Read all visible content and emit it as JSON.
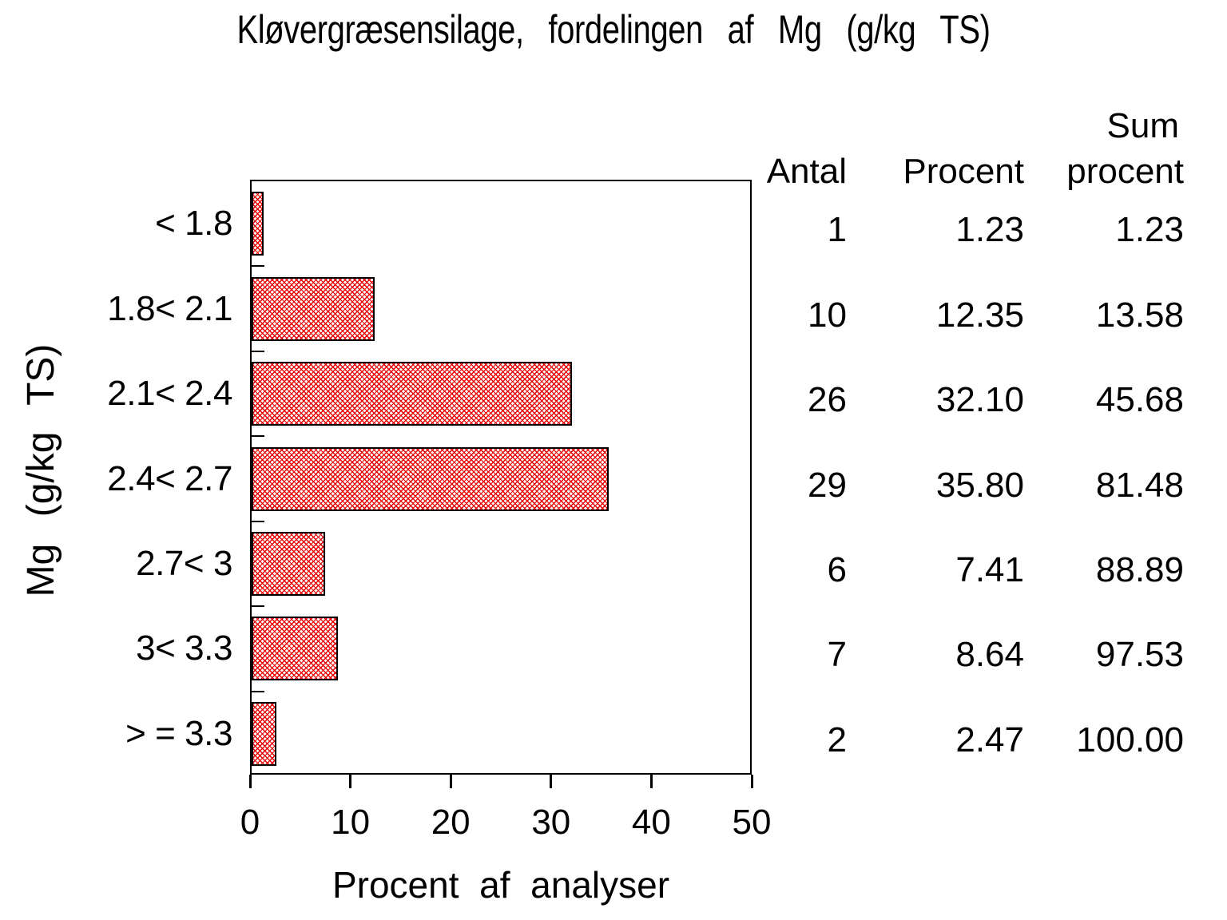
{
  "title": "Kløvergræsensilage, fordelingen af Mg (g/kg TS)",
  "chart_data": {
    "type": "bar",
    "orientation": "horizontal",
    "title": "Kløvergræsensilage, fordelingen af Mg (g/kg TS)",
    "categories": [
      "< 1.8",
      "1.8< 2.1",
      "2.1< 2.4",
      "2.4< 2.7",
      "2.7< 3",
      "3< 3.3",
      "> = 3.3"
    ],
    "values": [
      1.23,
      12.35,
      32.1,
      35.8,
      7.41,
      8.64,
      2.47
    ],
    "xlabel": "Procent af analyser",
    "ylabel": "Mg (g/kg TS)",
    "xlim": [
      0,
      50
    ],
    "xticks": [
      "0",
      "10",
      "20",
      "30",
      "40",
      "50"
    ],
    "grid": false,
    "legend": "none",
    "bar_pattern": "diagonal-crosshatch",
    "bar_color": "#e80000",
    "bar_border_color": "#000000",
    "series": [
      {
        "name": "Antal",
        "values": [
          1,
          10,
          26,
          29,
          6,
          7,
          2
        ]
      },
      {
        "name": "Procent",
        "values": [
          1.23,
          12.35,
          32.1,
          35.8,
          7.41,
          8.64,
          2.47
        ]
      },
      {
        "name": "Sum procent",
        "values": [
          1.23,
          13.58,
          45.68,
          81.48,
          88.89,
          97.53,
          100.0
        ]
      }
    ]
  },
  "table": {
    "headers": {
      "antal": "Antal",
      "procent": "Procent",
      "sum_line1": "Sum",
      "sum_line2": "procent"
    },
    "rows": [
      {
        "antal": "1",
        "procent": "1.23",
        "sum": "1.23"
      },
      {
        "antal": "10",
        "procent": "12.35",
        "sum": "13.58"
      },
      {
        "antal": "26",
        "procent": "32.10",
        "sum": "45.68"
      },
      {
        "antal": "29",
        "procent": "35.80",
        "sum": "81.48"
      },
      {
        "antal": "6",
        "procent": "7.41",
        "sum": "88.89"
      },
      {
        "antal": "7",
        "procent": "8.64",
        "sum": "97.53"
      },
      {
        "antal": "2",
        "procent": "2.47",
        "sum": "100.00"
      }
    ]
  }
}
